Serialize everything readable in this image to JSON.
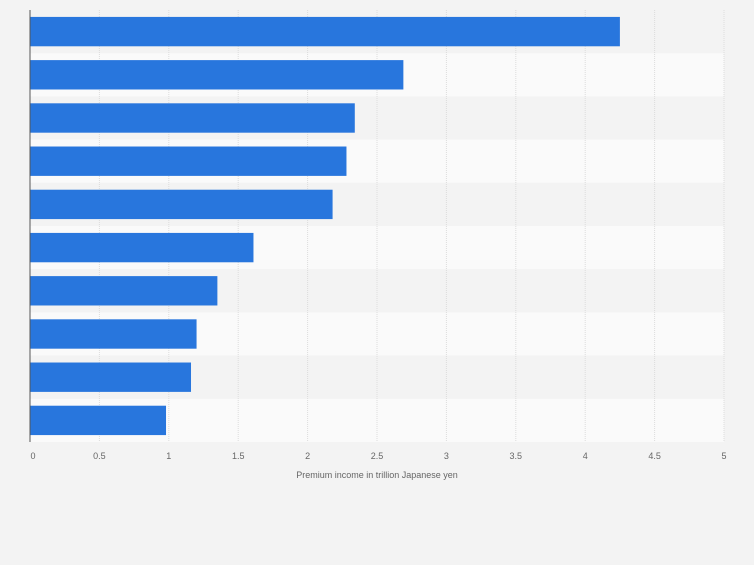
{
  "chart_data": {
    "type": "bar",
    "orientation": "horizontal",
    "categories": [
      "",
      "",
      "",
      "",
      "",
      "",
      "",
      "",
      "",
      ""
    ],
    "values": [
      4.25,
      2.69,
      2.34,
      2.28,
      2.18,
      1.61,
      1.35,
      1.2,
      1.16,
      0.98
    ],
    "title": "",
    "xlabel": "Premium income in trillion Japanese yen",
    "ylabel": "",
    "xlim": [
      0,
      5
    ],
    "x_ticks": [
      "0",
      "0.5",
      "1",
      "1.5",
      "2",
      "2.5",
      "3",
      "3.5",
      "4",
      "4.5",
      "5"
    ],
    "grid": true,
    "bar_color": "#2876dd",
    "band_colors": [
      "#f3f3f3",
      "#fafafa"
    ],
    "background_color": "#f3f3f3"
  }
}
